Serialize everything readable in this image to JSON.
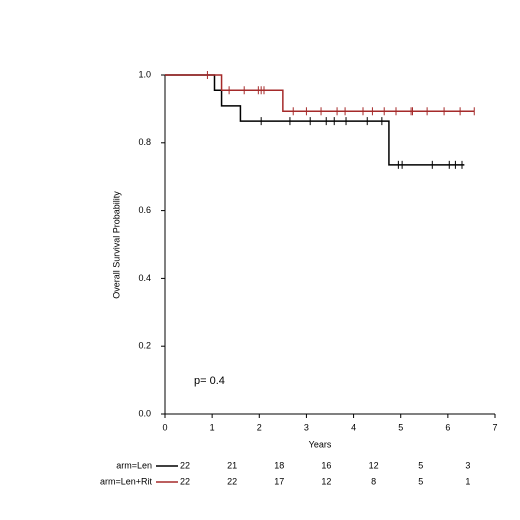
{
  "chart_data": {
    "type": "kaplan-meier",
    "xlabel": "Years",
    "ylabel": "Overall Survival Probability",
    "annotation": "p= 0.4",
    "xlim": [
      0,
      7
    ],
    "ylim": [
      0,
      1
    ],
    "xticks": [
      0,
      1,
      2,
      3,
      4,
      5,
      6,
      7
    ],
    "yticks": [
      {
        "value": 0,
        "label": "0.0"
      },
      0.2,
      0.4,
      0.6,
      0.8,
      {
        "value": 1,
        "label": "1.0"
      }
    ],
    "series": [
      {
        "name": "arm=Len",
        "color": "#000000",
        "times": [
          0,
          1.05,
          1.2,
          1.6,
          4.75,
          6.35
        ],
        "survival": [
          1,
          0.955,
          0.909,
          0.864,
          0.735,
          0.735
        ],
        "censor_times": [
          2.04,
          2.65,
          3.08,
          3.42,
          3.59,
          3.84,
          4.29,
          4.6,
          4.95,
          5.03,
          5.67,
          6.03,
          6.16,
          6.3
        ],
        "censor_values": [
          0.864,
          0.864,
          0.864,
          0.864,
          0.864,
          0.864,
          0.864,
          0.864,
          0.735,
          0.735,
          0.735,
          0.735,
          0.735,
          0.735
        ],
        "at_risk": [
          22,
          21,
          18,
          16,
          12,
          5,
          3
        ]
      },
      {
        "name": "arm=Len+Rit",
        "color": "#a52a2a",
        "times": [
          0,
          1.2,
          2.5,
          6.56
        ],
        "survival": [
          1,
          0.955,
          0.893,
          0.893
        ],
        "censor_times": [
          0.9,
          1.36,
          1.68,
          1.98,
          2.04,
          2.1,
          2.72,
          3.0,
          3.31,
          3.65,
          3.82,
          4.2,
          4.4,
          4.65,
          4.9,
          5.22,
          5.25,
          5.56,
          5.92,
          6.26,
          6.56
        ],
        "censor_values": [
          1,
          0.955,
          0.955,
          0.955,
          0.955,
          0.955,
          0.893,
          0.893,
          0.893,
          0.893,
          0.893,
          0.893,
          0.893,
          0.893,
          0.893,
          0.893,
          0.893,
          0.893,
          0.893,
          0.893,
          0.893
        ],
        "at_risk": [
          22,
          22,
          17,
          12,
          8,
          5,
          1
        ]
      }
    ]
  }
}
